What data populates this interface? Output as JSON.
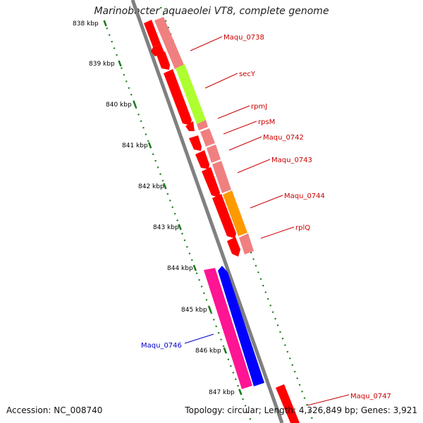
{
  "title": "Marinobacter aquaeolei VT8, complete genome",
  "accession": "Accession: NC_008740",
  "summary": "Topology: circular; Length: 4,326,849 bp; Genes: 3,921",
  "colors": {
    "backbone": "#808080",
    "tick": "#1a7a1a",
    "gene_label": "#cc0000",
    "highlight_label": "#0000cc",
    "red": "#ff0000",
    "light_red": "#f08080",
    "yellow_green": "#adff2f",
    "orange": "#ff9900",
    "pink": "#ff1493",
    "blue": "#0000ff"
  },
  "kbp_labels": [
    "838 kbp",
    "839 kbp",
    "840 kbp",
    "841 kbp",
    "842 kbp",
    "843 kbp",
    "844 kbp",
    "845 kbp",
    "846 kbp",
    "847 kbp"
  ],
  "gene_labels": [
    {
      "text": "Maqu_0738",
      "color": "gene_label"
    },
    {
      "text": "secY",
      "color": "gene_label"
    },
    {
      "text": "rpmJ",
      "color": "gene_label"
    },
    {
      "text": "rpsM",
      "color": "gene_label"
    },
    {
      "text": "Maqu_0742",
      "color": "gene_label"
    },
    {
      "text": "Maqu_0743",
      "color": "gene_label"
    },
    {
      "text": "Maqu_0744",
      "color": "gene_label"
    },
    {
      "text": "rplQ",
      "color": "gene_label"
    },
    {
      "text": "Maqu_0746",
      "color": "highlight_label"
    },
    {
      "text": "Maqu_0747",
      "color": "gene_label"
    }
  ]
}
